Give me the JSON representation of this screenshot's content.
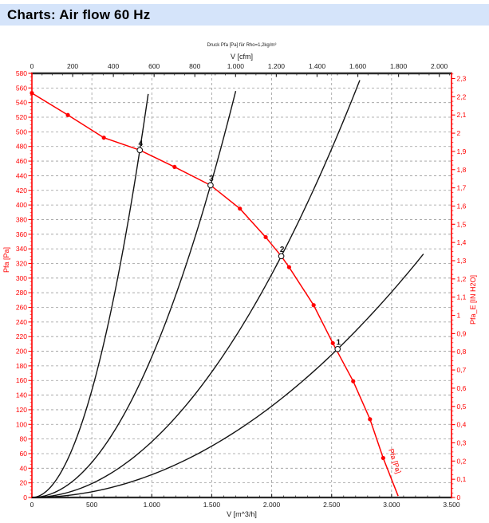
{
  "page": {
    "title": "Charts: Air flow 60 Hz"
  },
  "chart_data": {
    "type": "line",
    "title": "Druck Pfa [Pa] für Rho=1,2kg/m³",
    "axes": {
      "top": {
        "label": "V [cfm]",
        "min_cfm": 0,
        "max_cfm": 2050,
        "major_step_cfm": 200,
        "minor_step_cfm": 50,
        "m3h_per_cfm": 1.699,
        "tick_labels": [
          "0",
          "200",
          "400",
          "600",
          "800",
          "1.000",
          "1.200",
          "1.400",
          "1.600",
          "1.800",
          "2.000"
        ]
      },
      "bottom": {
        "label": "V [m^3/h]",
        "min": 0,
        "max": 3500,
        "major_step": 500,
        "minor_step": 100,
        "tick_labels": [
          "0",
          "500",
          "1.000",
          "1.500",
          "2.000",
          "2.500",
          "3.000",
          "3.500"
        ]
      },
      "left": {
        "label": "Pfa [Pa]",
        "min": 0,
        "max": 580,
        "major_step": 20,
        "minor_step": 5
      },
      "right": {
        "label": "Pfa_E [IN H2O]",
        "min": 0,
        "max": 2.3,
        "major_step": 0.1,
        "minor_step": 0.025,
        "pa_per_in_h2o": 249.08
      }
    },
    "fan_curve": {
      "name": "Pfa [Pa]",
      "inline_label": "Pfa [Pa]",
      "color": "#ff0000",
      "points": [
        [
          0,
          553
        ],
        [
          300,
          523
        ],
        [
          600,
          492
        ],
        [
          900,
          475
        ],
        [
          1190,
          452
        ],
        [
          1490,
          427
        ],
        [
          1735,
          395
        ],
        [
          1950,
          356
        ],
        [
          2080,
          330
        ],
        [
          2145,
          315
        ],
        [
          2350,
          263
        ],
        [
          2510,
          211
        ],
        [
          2680,
          159
        ],
        [
          2820,
          107
        ],
        [
          2930,
          54
        ],
        [
          3055,
          2
        ]
      ]
    },
    "system_curves": [
      {
        "label": "4",
        "op_v": 900,
        "op_pa": 475,
        "v_end": 970
      },
      {
        "label": "3",
        "op_v": 1490,
        "op_pa": 427,
        "v_end": 1700
      },
      {
        "label": "2",
        "op_v": 2080,
        "op_pa": 330,
        "v_end": 2735
      },
      {
        "label": "1",
        "op_v": 2550,
        "op_pa": 203,
        "v_end": 3266
      }
    ],
    "grid": {
      "h_step_pa": 20,
      "v_step_m3h": 500
    },
    "colors": {
      "red": "#ff0000",
      "axis_black": "#2b2b2b",
      "curve_black": "#141414",
      "grid": "#9b9b9b",
      "tick_text_black": "#1a1a1a",
      "title_bar_bg": "#d5e4fa"
    }
  }
}
